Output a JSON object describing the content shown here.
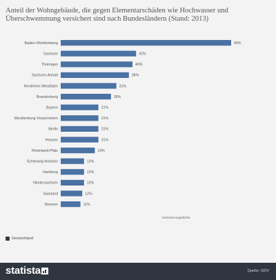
{
  "title": "Anteil der Wohngebäude, die gegen Elementarschäden wie Hochwasser und Überschwemmung versichert sind nach Bundesländern (Stand: 2013)",
  "legend_label": "Deutschland",
  "footer": {
    "logo": "statista",
    "source": "Quelle: GDV"
  },
  "colors": {
    "bar": "#4a72a3",
    "footer": "#2f3640"
  },
  "chart_data": {
    "type": "bar",
    "orientation": "horizontal",
    "xlabel": "Versicherungsdichte",
    "categories": [
      "Baden-Württemberg",
      "Sachsen",
      "Thüringen",
      "Sachsen-Anhalt",
      "Nordrhein-Westfalen",
      "Brandenburg",
      "Bayern",
      "Mecklenburg-Vorpommern",
      "Berlin",
      "Hessen",
      "Rheinland-Pfalz",
      "Schleswig-Holstein",
      "Hamburg",
      "Niedersachsen",
      "Saarland",
      "Bremen"
    ],
    "values": [
      95,
      42,
      40,
      38,
      31,
      28,
      21,
      21,
      21,
      21,
      19,
      13,
      13,
      13,
      12,
      11
    ],
    "value_labels": [
      "95%",
      "42%",
      "40%",
      "38%",
      "31%",
      "28%",
      "21%",
      "21%",
      "21%",
      "21%",
      "19%",
      "13%",
      "13%",
      "13%",
      "12%",
      "11%"
    ],
    "xlim": [
      0,
      100
    ],
    "grid": false,
    "legend": "bottom-left"
  }
}
